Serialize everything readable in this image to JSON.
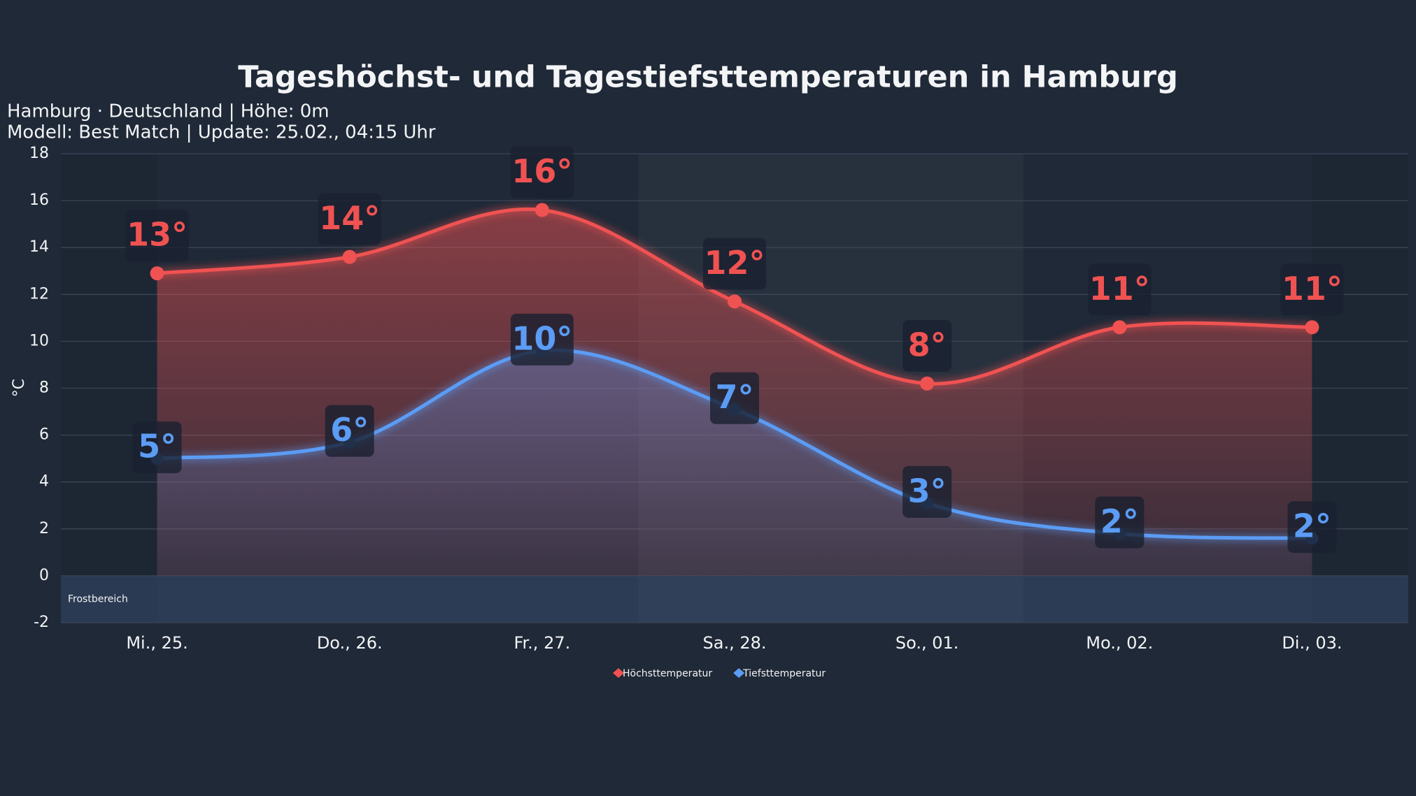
{
  "chart_data": {
    "type": "line",
    "title": "Tageshöchst- und Tagestiefsttemperaturen in Hamburg",
    "subtitle": [
      "Hamburg · Deutschland | Höhe: 0m",
      "Modell: Best Match | Update: 25.02., 04:15 Uhr"
    ],
    "y_label": "°C",
    "frost_label": "Frostbereich",
    "categories": [
      "Mi., 25.",
      "Do., 26.",
      "Fr., 27.",
      "Sa., 28.",
      "So., 01.",
      "Mo., 02.",
      "Di., 03."
    ],
    "series": [
      {
        "name": "Höchsttemperatur",
        "color": "#f05252",
        "values": [
          12.9,
          13.6,
          15.6,
          11.7,
          8.2,
          10.6,
          10.6
        ],
        "value_labels": [
          "13°",
          "14°",
          "16°",
          "12°",
          "8°",
          "11°",
          "11°"
        ]
      },
      {
        "name": "Tiefsttemperatur",
        "color": "#5b9cf5",
        "values": [
          5.0,
          5.7,
          9.6,
          7.1,
          3.1,
          1.8,
          1.6
        ],
        "value_labels": [
          "5°",
          "6°",
          "10°",
          "7°",
          "3°",
          "2°",
          "2°"
        ]
      }
    ],
    "ylim": [
      -2,
      18
    ],
    "yticks": [
      -2,
      0,
      2,
      4,
      6,
      8,
      10,
      12,
      14,
      16,
      18
    ],
    "grid": true
  }
}
